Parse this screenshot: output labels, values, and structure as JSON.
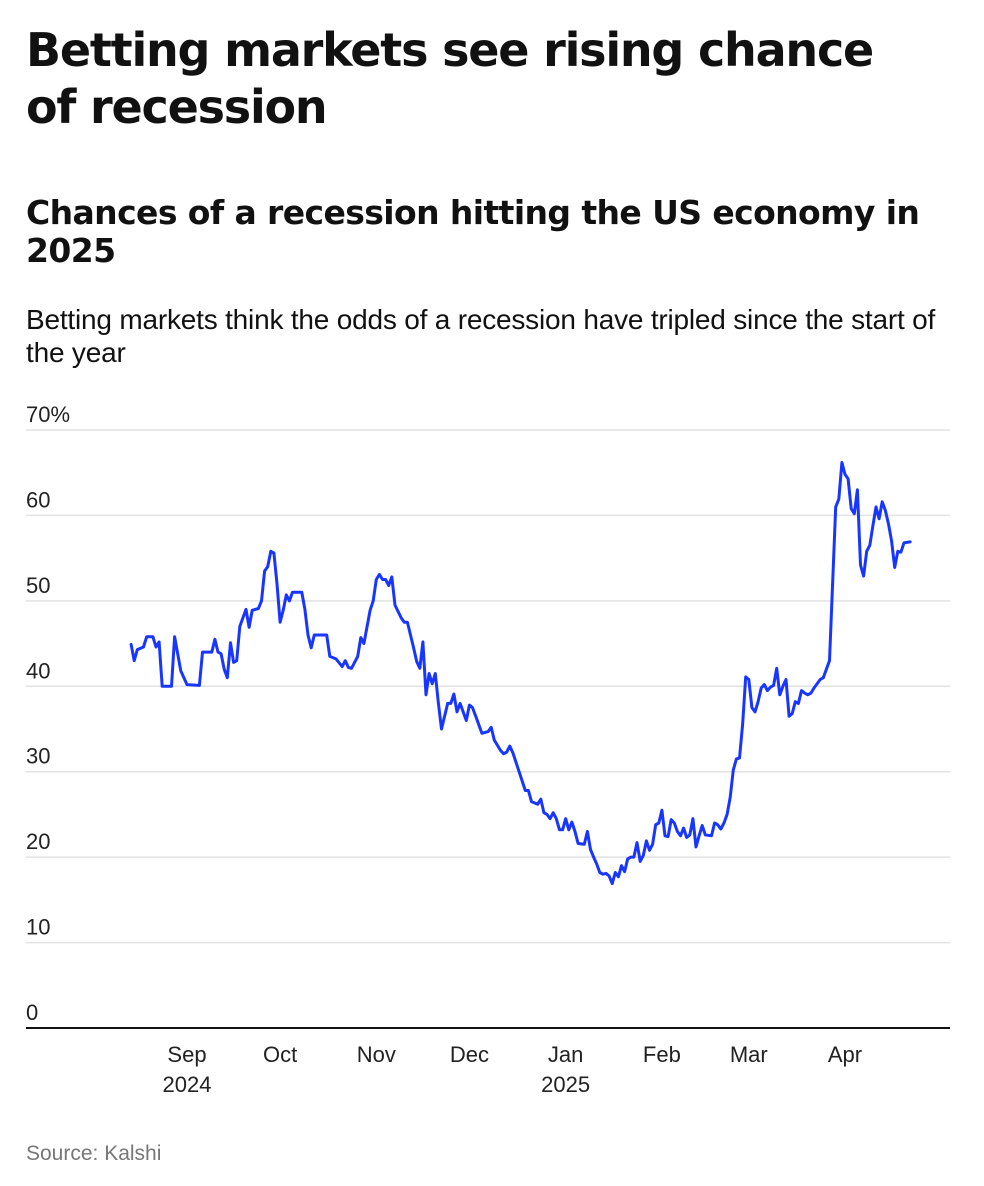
{
  "title": "Betting markets see rising chance of recession",
  "subtitle": "Chances of a recession hitting the US economy in 2025",
  "description": "Betting markets think the odds of a recession have tripled since the start of the year",
  "source": "Source: Kalshi",
  "colors": {
    "line": "#1836ff",
    "grid": "#e2e2e2",
    "axis": "#111111"
  },
  "chart_data": {
    "type": "line",
    "title": "Chances of a recession hitting the US economy in 2025",
    "xlabel": "",
    "ylabel": "",
    "ylim": [
      0,
      70
    ],
    "yticks": [
      "70%",
      "60",
      "50",
      "40",
      "30",
      "20",
      "10",
      "0"
    ],
    "ytick_values": [
      70,
      60,
      50,
      40,
      30,
      20,
      10,
      0
    ],
    "xticks": [
      {
        "label": "Sep",
        "year": "2024",
        "date": "2024-09-01"
      },
      {
        "label": "Oct",
        "year": "",
        "date": "2024-10-01"
      },
      {
        "label": "Nov",
        "year": "",
        "date": "2024-11-01"
      },
      {
        "label": "Dec",
        "year": "",
        "date": "2024-12-01"
      },
      {
        "label": "Jan",
        "year": "2025",
        "date": "2025-01-01"
      },
      {
        "label": "Feb",
        "year": "",
        "date": "2025-02-01"
      },
      {
        "label": "Mar",
        "year": "",
        "date": "2025-03-01"
      },
      {
        "label": "Apr",
        "year": "",
        "date": "2025-04-01"
      }
    ],
    "grid": true,
    "series": [
      {
        "values": [
          [
            "2024-08-14",
            44.9
          ],
          [
            "2024-08-15",
            43.0
          ],
          [
            "2024-08-16",
            44.3
          ],
          [
            "2024-08-18",
            44.6
          ],
          [
            "2024-08-19",
            45.8
          ],
          [
            "2024-08-21",
            45.8
          ],
          [
            "2024-08-22",
            44.6
          ],
          [
            "2024-08-23",
            45.2
          ],
          [
            "2024-08-24",
            40.0
          ],
          [
            "2024-08-27",
            40.0
          ],
          [
            "2024-08-28",
            45.8
          ],
          [
            "2024-08-30",
            41.8
          ],
          [
            "2024-09-01",
            40.2
          ],
          [
            "2024-09-05",
            40.1
          ],
          [
            "2024-09-06",
            44.0
          ],
          [
            "2024-09-09",
            44.0
          ],
          [
            "2024-09-10",
            45.5
          ],
          [
            "2024-09-11",
            44.0
          ],
          [
            "2024-09-12",
            43.8
          ],
          [
            "2024-09-13",
            42.0
          ],
          [
            "2024-09-14",
            41.0
          ],
          [
            "2024-09-15",
            45.1
          ],
          [
            "2024-09-16",
            42.8
          ],
          [
            "2024-09-17",
            43.0
          ],
          [
            "2024-09-18",
            47.0
          ],
          [
            "2024-09-19",
            48.0
          ],
          [
            "2024-09-20",
            49.0
          ],
          [
            "2024-09-21",
            46.9
          ],
          [
            "2024-09-22",
            48.9
          ],
          [
            "2024-09-24",
            49.1
          ],
          [
            "2024-09-25",
            50.0
          ],
          [
            "2024-09-26",
            53.5
          ],
          [
            "2024-09-27",
            54.0
          ],
          [
            "2024-09-28",
            55.8
          ],
          [
            "2024-09-29",
            55.6
          ],
          [
            "2024-09-30",
            52.0
          ],
          [
            "2024-10-01",
            47.5
          ],
          [
            "2024-10-02",
            48.9
          ],
          [
            "2024-10-03",
            50.7
          ],
          [
            "2024-10-04",
            50.0
          ],
          [
            "2024-10-05",
            51.0
          ],
          [
            "2024-10-08",
            51.0
          ],
          [
            "2024-10-09",
            49.0
          ],
          [
            "2024-10-10",
            46.0
          ],
          [
            "2024-10-11",
            44.5
          ],
          [
            "2024-10-12",
            46.0
          ],
          [
            "2024-10-16",
            46.0
          ],
          [
            "2024-10-17",
            43.5
          ],
          [
            "2024-10-19",
            43.2
          ],
          [
            "2024-10-21",
            42.3
          ],
          [
            "2024-10-22",
            43.0
          ],
          [
            "2024-10-23",
            42.2
          ],
          [
            "2024-10-24",
            42.1
          ],
          [
            "2024-10-26",
            43.5
          ],
          [
            "2024-10-27",
            45.7
          ],
          [
            "2024-10-28",
            45.0
          ],
          [
            "2024-10-30",
            48.9
          ],
          [
            "2024-10-31",
            50.0
          ],
          [
            "2024-11-01",
            52.5
          ],
          [
            "2024-11-02",
            53.1
          ],
          [
            "2024-11-03",
            52.5
          ],
          [
            "2024-11-04",
            52.5
          ],
          [
            "2024-11-05",
            51.8
          ],
          [
            "2024-11-06",
            52.8
          ],
          [
            "2024-11-07",
            49.5
          ],
          [
            "2024-11-09",
            48.0
          ],
          [
            "2024-11-10",
            47.5
          ],
          [
            "2024-11-11",
            47.5
          ],
          [
            "2024-11-13",
            44.5
          ],
          [
            "2024-11-14",
            42.9
          ],
          [
            "2024-11-15",
            42.1
          ],
          [
            "2024-11-16",
            45.2
          ],
          [
            "2024-11-17",
            39.0
          ],
          [
            "2024-11-18",
            41.5
          ],
          [
            "2024-11-19",
            40.3
          ],
          [
            "2024-11-20",
            41.5
          ],
          [
            "2024-11-21",
            38.0
          ],
          [
            "2024-11-22",
            35.0
          ],
          [
            "2024-11-24",
            38.0
          ],
          [
            "2024-11-25",
            38.0
          ],
          [
            "2024-11-26",
            39.1
          ],
          [
            "2024-11-27",
            37.0
          ],
          [
            "2024-11-28",
            38.0
          ],
          [
            "2024-11-30",
            36.0
          ],
          [
            "2024-12-01",
            37.8
          ],
          [
            "2024-12-02",
            37.5
          ],
          [
            "2024-12-03",
            36.5
          ],
          [
            "2024-12-04",
            35.5
          ],
          [
            "2024-12-05",
            34.5
          ],
          [
            "2024-12-07",
            34.7
          ],
          [
            "2024-12-08",
            35.2
          ],
          [
            "2024-12-09",
            33.7
          ],
          [
            "2024-12-11",
            32.5
          ],
          [
            "2024-12-12",
            32.1
          ],
          [
            "2024-12-13",
            32.3
          ],
          [
            "2024-12-14",
            33.0
          ],
          [
            "2024-12-15",
            32.2
          ],
          [
            "2024-12-17",
            30.0
          ],
          [
            "2024-12-19",
            27.8
          ],
          [
            "2024-12-20",
            27.8
          ],
          [
            "2024-12-21",
            26.5
          ],
          [
            "2024-12-23",
            26.2
          ],
          [
            "2024-12-24",
            26.8
          ],
          [
            "2024-12-25",
            25.2
          ],
          [
            "2024-12-26",
            25.0
          ],
          [
            "2024-12-27",
            24.5
          ],
          [
            "2024-12-28",
            25.2
          ],
          [
            "2024-12-29",
            24.5
          ],
          [
            "2024-12-30",
            23.2
          ],
          [
            "2024-12-31",
            23.2
          ],
          [
            "2025-01-01",
            24.5
          ],
          [
            "2025-01-02",
            23.2
          ],
          [
            "2025-01-03",
            24.1
          ],
          [
            "2025-01-04",
            23.0
          ],
          [
            "2025-01-05",
            21.6
          ],
          [
            "2025-01-07",
            21.5
          ],
          [
            "2025-01-08",
            23.0
          ],
          [
            "2025-01-09",
            20.9
          ],
          [
            "2025-01-10",
            20.0
          ],
          [
            "2025-01-11",
            19.2
          ],
          [
            "2025-01-12",
            18.2
          ],
          [
            "2025-01-13",
            18.0
          ],
          [
            "2025-01-14",
            18.1
          ],
          [
            "2025-01-15",
            17.8
          ],
          [
            "2025-01-16",
            16.9
          ],
          [
            "2025-01-17",
            18.2
          ],
          [
            "2025-01-18",
            17.7
          ],
          [
            "2025-01-19",
            19.0
          ],
          [
            "2025-01-20",
            18.3
          ],
          [
            "2025-01-21",
            19.8
          ],
          [
            "2025-01-22",
            20.0
          ],
          [
            "2025-01-23",
            20.0
          ],
          [
            "2025-01-24",
            21.7
          ],
          [
            "2025-01-25",
            19.5
          ],
          [
            "2025-01-26",
            20.2
          ],
          [
            "2025-01-27",
            21.9
          ],
          [
            "2025-01-28",
            20.8
          ],
          [
            "2025-01-29",
            21.5
          ],
          [
            "2025-01-30",
            23.8
          ],
          [
            "2025-01-31",
            24.0
          ],
          [
            "2025-02-01",
            25.5
          ],
          [
            "2025-02-02",
            22.5
          ],
          [
            "2025-02-03",
            22.4
          ],
          [
            "2025-02-04",
            24.4
          ],
          [
            "2025-02-05",
            24.0
          ],
          [
            "2025-02-06",
            23.0
          ],
          [
            "2025-02-07",
            22.5
          ],
          [
            "2025-02-08",
            23.4
          ],
          [
            "2025-02-09",
            22.3
          ],
          [
            "2025-02-10",
            22.6
          ],
          [
            "2025-02-11",
            24.5
          ],
          [
            "2025-02-12",
            21.2
          ],
          [
            "2025-02-13",
            22.5
          ],
          [
            "2025-02-14",
            23.7
          ],
          [
            "2025-02-15",
            22.6
          ],
          [
            "2025-02-17",
            22.5
          ],
          [
            "2025-02-18",
            24.0
          ],
          [
            "2025-02-19",
            23.8
          ],
          [
            "2025-02-20",
            23.3
          ],
          [
            "2025-02-21",
            24.0
          ],
          [
            "2025-02-22",
            25.0
          ],
          [
            "2025-02-23",
            27.0
          ],
          [
            "2025-02-24",
            30.2
          ],
          [
            "2025-02-25",
            31.5
          ],
          [
            "2025-02-26",
            31.6
          ],
          [
            "2025-02-27",
            35.5
          ],
          [
            "2025-02-28",
            41.1
          ],
          [
            "2025-03-01",
            40.8
          ],
          [
            "2025-03-02",
            37.5
          ],
          [
            "2025-03-03",
            37.0
          ],
          [
            "2025-03-04",
            38.2
          ],
          [
            "2025-03-05",
            39.8
          ],
          [
            "2025-03-06",
            40.2
          ],
          [
            "2025-03-07",
            39.5
          ],
          [
            "2025-03-08",
            39.9
          ],
          [
            "2025-03-09",
            40.1
          ],
          [
            "2025-03-10",
            42.1
          ],
          [
            "2025-03-11",
            39.0
          ],
          [
            "2025-03-12",
            40.0
          ],
          [
            "2025-03-13",
            40.8
          ],
          [
            "2025-03-14",
            36.5
          ],
          [
            "2025-03-15",
            36.8
          ],
          [
            "2025-03-16",
            38.2
          ],
          [
            "2025-03-17",
            38.0
          ],
          [
            "2025-03-18",
            39.5
          ],
          [
            "2025-03-19",
            39.2
          ],
          [
            "2025-03-20",
            39.0
          ],
          [
            "2025-03-21",
            39.2
          ],
          [
            "2025-03-22",
            39.8
          ],
          [
            "2025-03-24",
            40.8
          ],
          [
            "2025-03-25",
            41.0
          ],
          [
            "2025-03-26",
            42.0
          ],
          [
            "2025-03-27",
            43.0
          ],
          [
            "2025-03-28",
            52.0
          ],
          [
            "2025-03-29",
            61.0
          ],
          [
            "2025-03-30",
            61.9
          ],
          [
            "2025-03-31",
            66.2
          ],
          [
            "2025-04-01",
            64.8
          ],
          [
            "2025-04-02",
            64.3
          ],
          [
            "2025-04-03",
            60.8
          ],
          [
            "2025-04-04",
            60.2
          ],
          [
            "2025-04-05",
            63.0
          ],
          [
            "2025-04-06",
            54.2
          ],
          [
            "2025-04-07",
            52.9
          ],
          [
            "2025-04-08",
            55.8
          ],
          [
            "2025-04-09",
            56.5
          ],
          [
            "2025-04-10",
            58.8
          ],
          [
            "2025-04-11",
            61.0
          ],
          [
            "2025-04-12",
            59.6
          ],
          [
            "2025-04-13",
            61.6
          ],
          [
            "2025-04-14",
            60.6
          ],
          [
            "2025-04-15",
            59.0
          ],
          [
            "2025-04-16",
            57.0
          ],
          [
            "2025-04-17",
            53.9
          ],
          [
            "2025-04-18",
            55.8
          ],
          [
            "2025-04-19",
            55.7
          ],
          [
            "2025-04-20",
            56.8
          ],
          [
            "2025-04-22",
            56.9
          ]
        ]
      }
    ]
  }
}
